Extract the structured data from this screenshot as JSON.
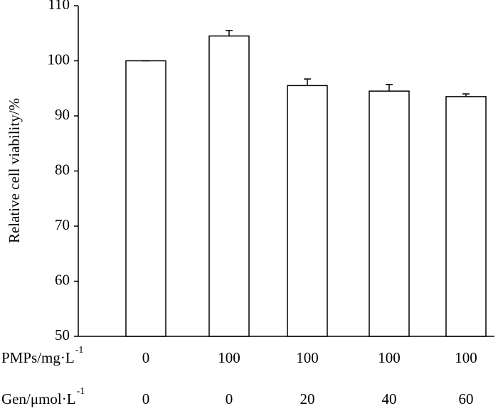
{
  "chart_data": {
    "type": "bar",
    "y_label": "Relative cell viability/%",
    "values": [
      100,
      104.5,
      95.5,
      94.5,
      93.5
    ],
    "errors": [
      0,
      1,
      1.2,
      1.2,
      0.5
    ],
    "color": "#ffffff",
    "ylim": [
      50,
      110
    ],
    "yticks": [
      50,
      60,
      70,
      80,
      90,
      100,
      110
    ],
    "category_rows": [
      {
        "label": "PMPs/mg·L",
        "sup": "-1",
        "values": [
          0,
          100,
          100,
          100,
          100
        ]
      },
      {
        "label": "Gen/μmol·L",
        "sup": "-1",
        "values": [
          0,
          0,
          20,
          40,
          60
        ]
      }
    ]
  }
}
